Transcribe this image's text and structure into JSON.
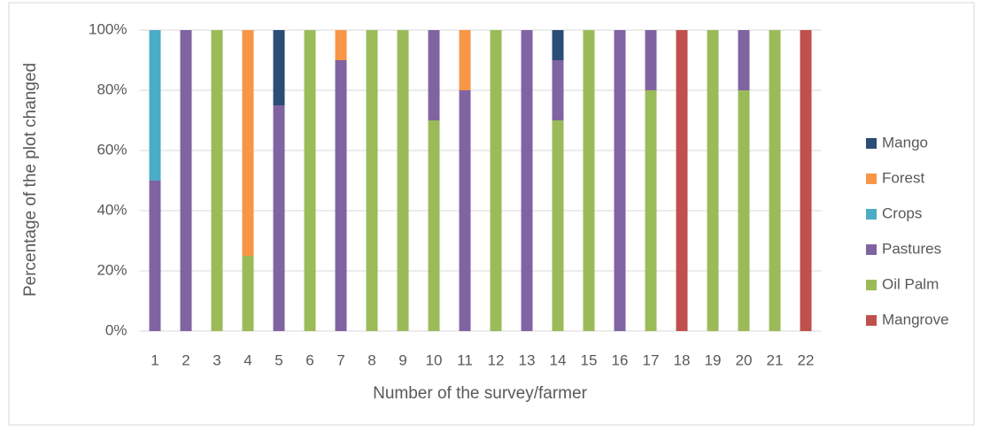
{
  "chart_data": {
    "type": "stacked_bar",
    "x_label": "Number of the survey/farmer",
    "y_label": "Percentage of the plot changed",
    "categories": [
      "1",
      "2",
      "3",
      "4",
      "5",
      "6",
      "7",
      "8",
      "9",
      "10",
      "11",
      "12",
      "13",
      "14",
      "15",
      "16",
      "17",
      "18",
      "19",
      "20",
      "21",
      "22"
    ],
    "series": [
      {
        "name": "Mangrove",
        "color": "#c0504d",
        "values": [
          0,
          0,
          0,
          0,
          0,
          0,
          0,
          0,
          0,
          0,
          0,
          0,
          0,
          0,
          0,
          0,
          0,
          100,
          0,
          0,
          0,
          100
        ]
      },
      {
        "name": "Oil Palm",
        "color": "#9bbb59",
        "values": [
          0,
          0,
          100,
          25,
          0,
          100,
          0,
          100,
          100,
          70,
          0,
          100,
          0,
          70,
          100,
          0,
          80,
          0,
          100,
          80,
          100,
          0
        ]
      },
      {
        "name": "Pastures",
        "color": "#8064a2",
        "values": [
          50,
          100,
          0,
          0,
          75,
          0,
          90,
          0,
          0,
          30,
          80,
          0,
          100,
          20,
          0,
          100,
          20,
          0,
          0,
          20,
          0,
          0
        ]
      },
      {
        "name": "Crops",
        "color": "#4bacc6",
        "values": [
          50,
          0,
          0,
          0,
          0,
          0,
          0,
          0,
          0,
          0,
          0,
          0,
          0,
          0,
          0,
          0,
          0,
          0,
          0,
          0,
          0,
          0
        ]
      },
      {
        "name": "Forest",
        "color": "#f79646",
        "values": [
          0,
          0,
          0,
          75,
          0,
          0,
          10,
          0,
          0,
          0,
          20,
          0,
          0,
          0,
          0,
          0,
          0,
          0,
          0,
          0,
          0,
          0
        ]
      },
      {
        "name": "Mango",
        "color": "#2c4d75",
        "values": [
          0,
          0,
          0,
          0,
          25,
          0,
          0,
          0,
          0,
          0,
          0,
          0,
          0,
          10,
          0,
          0,
          0,
          0,
          0,
          0,
          0,
          0
        ]
      }
    ],
    "ylim": [
      0,
      100
    ],
    "yticks": [
      {
        "value": 0,
        "label": "0%"
      },
      {
        "value": 20,
        "label": "20%"
      },
      {
        "value": 40,
        "label": "40%"
      },
      {
        "value": 60,
        "label": "60%"
      },
      {
        "value": 80,
        "label": "80%"
      },
      {
        "value": 100,
        "label": "100%"
      }
    ],
    "grid": true,
    "legend": "right"
  }
}
